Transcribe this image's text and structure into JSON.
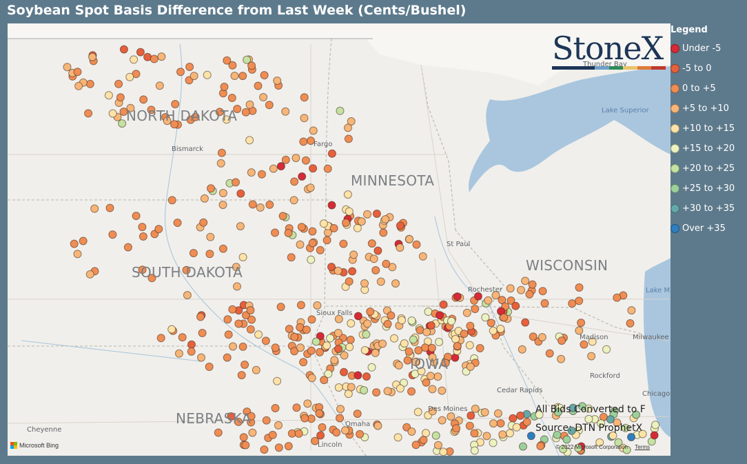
{
  "title": "Soybean Spot Basis Difference from Last Week (Cents/Bushel)",
  "logo": {
    "text": "StoneX",
    "tm": "™"
  },
  "legend": {
    "title": "Legend",
    "items": [
      {
        "label": "Under -5",
        "color": "#d62b36"
      },
      {
        "label": "-5 to 0",
        "color": "#e7603c"
      },
      {
        "label": "0 to +5",
        "color": "#f08d53"
      },
      {
        "label": "+5 to +10",
        "color": "#f7b678"
      },
      {
        "label": "+10 to +15",
        "color": "#fde3a7"
      },
      {
        "label": "+15 to +20",
        "color": "#ecf2bf"
      },
      {
        "label": "+20 to +25",
        "color": "#c4e2a2"
      },
      {
        "label": "+25 to +30",
        "color": "#9bd09a"
      },
      {
        "label": "+30 to +35",
        "color": "#64a9a8"
      },
      {
        "label": "Over +35",
        "color": "#2e7fc1"
      }
    ]
  },
  "states": [
    "NORTH DAKOTA",
    "MINNESOTA",
    "SOUTH DAKOTA",
    "WISCONSIN",
    "IOWA",
    "NEBRASKA"
  ],
  "cities": [
    "Bismarck",
    "Fargo",
    "St Paul",
    "Rochester",
    "Sioux Falls",
    "Madison",
    "Milwaukee",
    "Rockford",
    "Cedar Rapids",
    "Des Moines",
    "Omaha",
    "Lincoln",
    "Cheyenne",
    "Chicago",
    "Thunder Bay"
  ],
  "water": [
    "Lake Superior",
    "Lake Michigan"
  ],
  "source": {
    "line1": "All Bids Converted to F",
    "line2": "Source: DTN ProphetX"
  },
  "attribution": {
    "bing": "Microsoft Bing",
    "copyright": "© 2022 Microsoft Corporation",
    "terms": "Terms"
  }
}
